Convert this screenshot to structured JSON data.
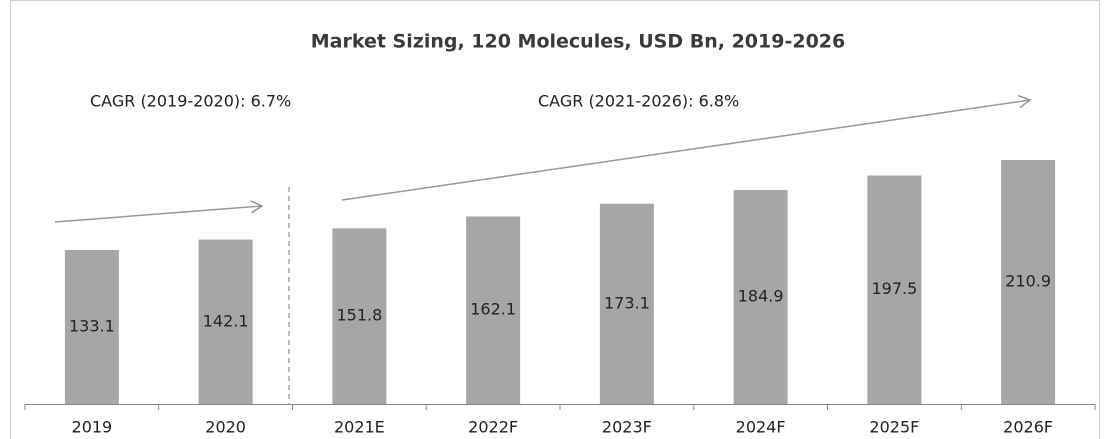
{
  "chart_data": {
    "type": "bar",
    "title": "Market Sizing, 120 Molecules, USD  Bn, 2019-2026",
    "annotations": [
      "CAGR (2019-2020): 6.7%",
      "CAGR (2021-2026): 6.8%"
    ],
    "categories": [
      "2019",
      "2020",
      "2021E",
      "2022F",
      "2023F",
      "2024F",
      "2025F",
      "2026F"
    ],
    "values": [
      133.1,
      142.1,
      151.8,
      162.1,
      173.1,
      184.9,
      197.5,
      210.9
    ],
    "color": "#a6a6a6"
  }
}
